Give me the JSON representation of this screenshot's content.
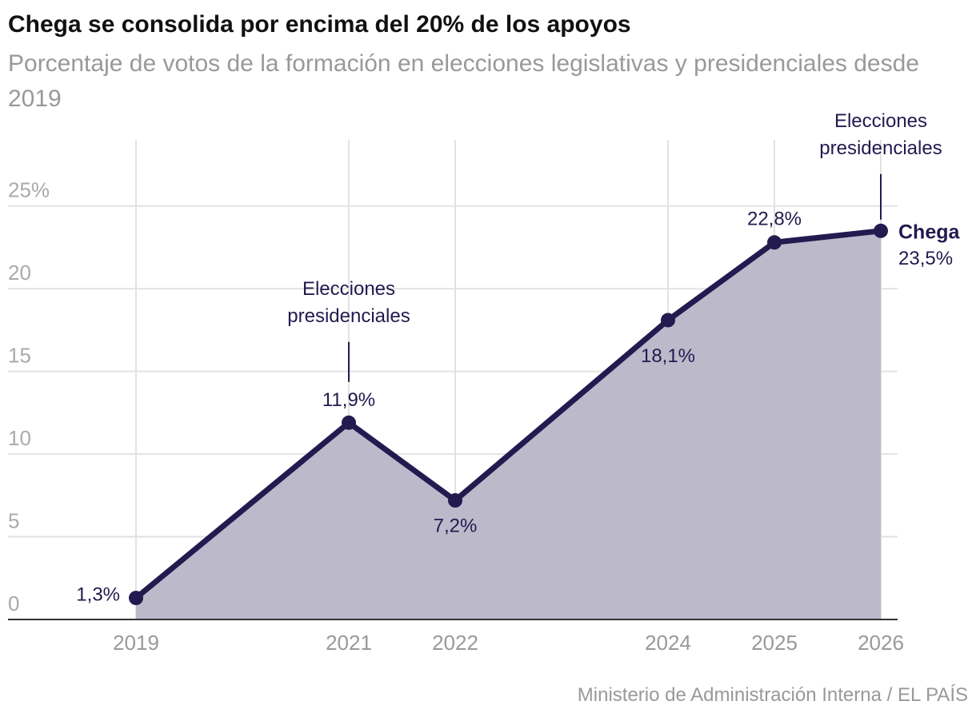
{
  "chart_data": {
    "type": "area-line",
    "title": "Chega se consolida por encima del 20% de los apoyos",
    "subtitle": "Porcentaje de votos de la formación en elecciones legislativas y presidenciales desde 2019",
    "source": "Ministerio de Administración Interna / EL PAÍS",
    "x": [
      2019,
      2021,
      2022,
      2024,
      2025,
      2026
    ],
    "xlim": [
      2019,
      2026
    ],
    "xticks": [
      2019,
      2021,
      2022,
      2024,
      2025,
      2026
    ],
    "ylim": [
      0,
      29
    ],
    "yticks": [
      0,
      5,
      10,
      15,
      20,
      {
        "value": 25,
        "label": "25%"
      }
    ],
    "grid": true,
    "series": [
      {
        "name": "Chega",
        "color": "#231a4f",
        "fill": "#bcb9cb",
        "values": [
          1.3,
          11.9,
          7.2,
          18.1,
          22.8,
          23.5
        ],
        "value_labels": [
          "1,3%",
          "11,9%",
          "7,2%",
          "18,1%",
          "22,8%",
          "23,5%"
        ]
      }
    ],
    "annotations": [
      {
        "text": "Elecciones presidenciales",
        "x": 2021
      },
      {
        "text": "Elecciones presidenciales",
        "x": 2026
      }
    ]
  }
}
